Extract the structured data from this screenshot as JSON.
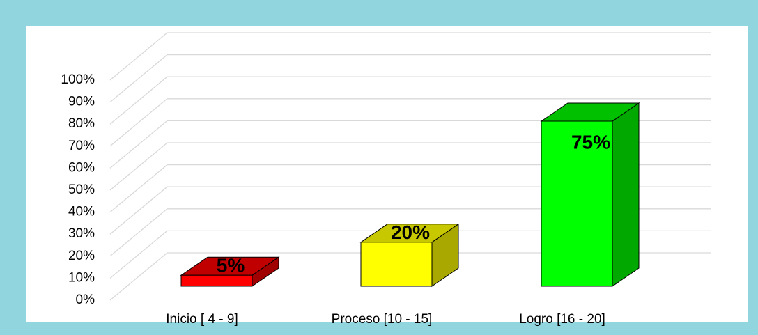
{
  "chart_data": {
    "type": "bar3d",
    "categories": [
      "Inicio  [ 4 - 9]",
      "Proceso  [10 - 15]",
      "Logro  [16 - 20]"
    ],
    "values": [
      5,
      20,
      75
    ],
    "value_labels": [
      "5%",
      "20%",
      "75%"
    ],
    "colors": [
      "#ff0000",
      "#ffff00",
      "#00ff00"
    ],
    "top_colors": [
      "#c00000",
      "#c8c800",
      "#00c000"
    ],
    "side_colors": [
      "#a00000",
      "#a8a800",
      "#00a800"
    ],
    "ylim": [
      0,
      100
    ],
    "yticks": [
      {
        "value": 0,
        "label": "0%"
      },
      {
        "value": 10,
        "label": "10%"
      },
      {
        "value": 20,
        "label": "20%"
      },
      {
        "value": 30,
        "label": "30%"
      },
      {
        "value": 40,
        "label": "40%"
      },
      {
        "value": 50,
        "label": "50%"
      },
      {
        "value": 60,
        "label": "60%"
      },
      {
        "value": 70,
        "label": "70%"
      },
      {
        "value": 80,
        "label": "80%"
      },
      {
        "value": 90,
        "label": "90%"
      },
      {
        "value": 100,
        "label": "100%"
      }
    ],
    "grid": true
  }
}
